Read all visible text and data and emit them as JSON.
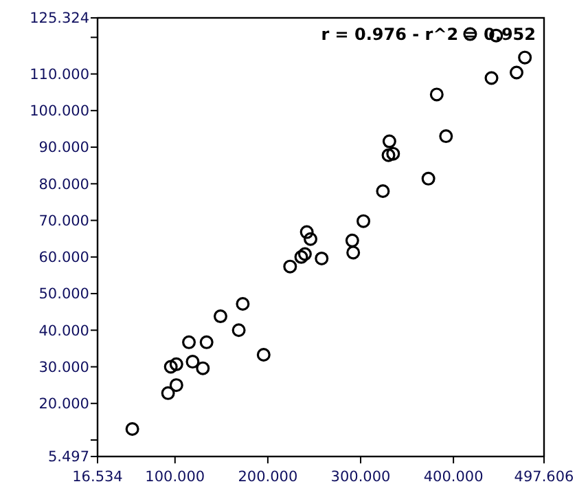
{
  "chart_data": {
    "type": "scatter",
    "marker": "circle",
    "grid": false,
    "annotations": [
      "r = 0.976 - r^2 = 0.952"
    ],
    "xlim": [
      16.534,
      497.606
    ],
    "xticks": [
      {
        "value": 16.534,
        "label": "16.534"
      },
      {
        "value": 100,
        "label": "100.000"
      },
      {
        "value": 200,
        "label": "200.000"
      },
      {
        "value": 300,
        "label": "300.000"
      },
      {
        "value": 400,
        "label": "400.000"
      },
      {
        "value": 497.606,
        "label": "497.606"
      }
    ],
    "ylim": [
      5.497,
      125.324
    ],
    "yticks": [
      {
        "value": 5.497,
        "label": "5.497"
      },
      {
        "value": 10,
        "label": null
      },
      {
        "value": 20,
        "label": "20.000"
      },
      {
        "value": 30,
        "label": "30.000"
      },
      {
        "value": 40,
        "label": "40.000"
      },
      {
        "value": 50,
        "label": "50.000"
      },
      {
        "value": 60,
        "label": "60.000"
      },
      {
        "value": 70,
        "label": "70.000"
      },
      {
        "value": 80,
        "label": "80.000"
      },
      {
        "value": 90,
        "label": "90.000"
      },
      {
        "value": 100,
        "label": "100.000"
      },
      {
        "value": 110,
        "label": "110.000"
      },
      {
        "value": 120,
        "label": null
      },
      {
        "value": 125.324,
        "label": "125.324"
      }
    ],
    "series": [
      {
        "color": "#000000",
        "x": [
          54,
          92.5,
          101.5,
          95.5,
          101.5,
          119,
          130,
          115,
          134,
          149,
          168.7,
          173,
          195.5,
          224,
          236,
          240,
          258,
          246,
          242,
          291,
          292,
          303,
          324,
          331,
          330,
          335,
          373,
          382,
          392,
          418,
          446,
          441,
          468,
          477
        ],
        "values": [
          13,
          22.8,
          25,
          30,
          30.7,
          31.4,
          29.6,
          36.7,
          36.7,
          43.8,
          40,
          47.2,
          33.3,
          57.4,
          60,
          60.8,
          59.6,
          64.9,
          66.8,
          64.5,
          61.2,
          69.8,
          78,
          91.6,
          87.8,
          88.2,
          81.4,
          104.4,
          93,
          120.9,
          120.5,
          108.9,
          110.4,
          114.5
        ]
      }
    ]
  }
}
